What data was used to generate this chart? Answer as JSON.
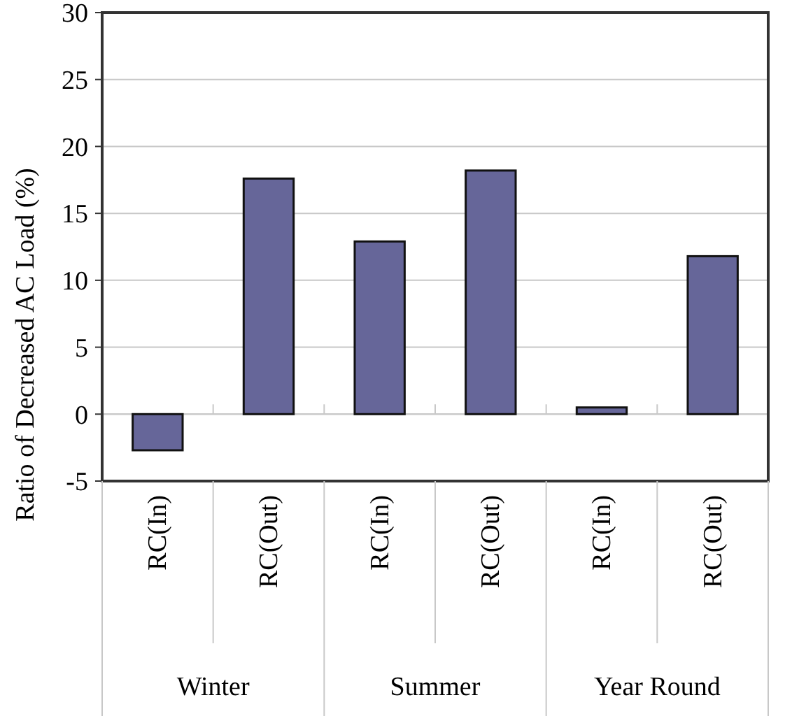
{
  "chart_data": {
    "type": "bar",
    "ylabel": "Ratio of Decreased AC Load (%)",
    "categories": [
      "RC(In)",
      "RC(Out)",
      "RC(In)",
      "RC(Out)",
      "RC(In)",
      "RC(Out)"
    ],
    "values": [
      -2.7,
      17.6,
      12.9,
      18.2,
      0.5,
      11.8
    ],
    "color": "#666699",
    "ylim": [
      -5,
      30
    ],
    "yticks": [
      -5,
      0,
      5,
      10,
      15,
      20,
      25,
      30
    ],
    "grid": "y",
    "annotations": [
      "Winter",
      "Summer",
      "Year Round"
    ]
  }
}
